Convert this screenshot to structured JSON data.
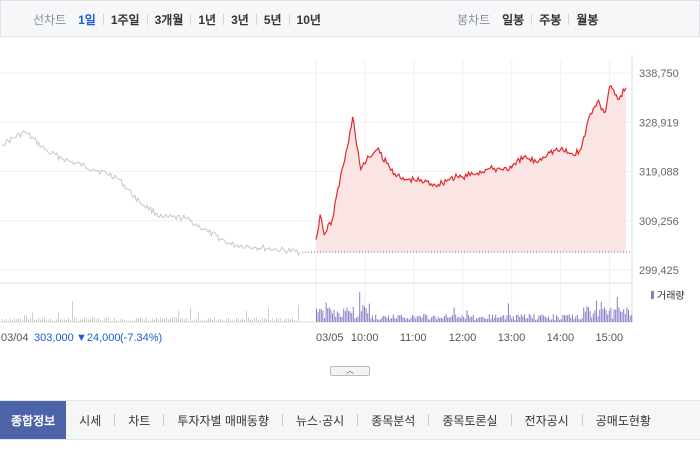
{
  "toolbar": {
    "line_chart_label": "선차트",
    "periods": [
      "1일",
      "1주일",
      "3개월",
      "1년",
      "3년",
      "5년",
      "10년"
    ],
    "active_period": "1일",
    "candle_chart_label": "봉차트",
    "candle_periods": [
      "일봉",
      "주봉",
      "월봉"
    ]
  },
  "chart_data": {
    "type": "line",
    "title": "",
    "xlabel": "",
    "ylabel": "",
    "y_ticks": [
      "338,750",
      "328,919",
      "319,088",
      "309,256",
      "299,425"
    ],
    "ylim": [
      299425,
      338750
    ],
    "x_ticks": [
      "03/05",
      "10:00",
      "11:00",
      "12:00",
      "13:00",
      "14:00",
      "15:00"
    ],
    "previous_close": 303000,
    "previous_session": {
      "name": "03/04",
      "color": "#c8c8c8",
      "x": [
        "09:00",
        "09:30",
        "10:00",
        "10:30",
        "11:00",
        "11:30",
        "12:00",
        "12:30",
        "13:00",
        "13:30",
        "14:00",
        "14:30",
        "15:00",
        "15:30"
      ],
      "values": [
        324500,
        327000,
        323000,
        321000,
        319600,
        318000,
        313000,
        309900,
        309800,
        307000,
        304500,
        304000,
        303500,
        303000
      ]
    },
    "current_session": {
      "name": "03/05",
      "color": "#e22a2a",
      "fill": "#fbe4e4",
      "x": [
        "09:00",
        "09:05",
        "09:10",
        "09:20",
        "09:30",
        "09:40",
        "09:45",
        "09:55",
        "10:05",
        "10:15",
        "10:30",
        "10:45",
        "11:00",
        "11:30",
        "11:45",
        "12:00",
        "12:30",
        "13:00",
        "13:15",
        "13:30",
        "13:45",
        "14:00",
        "14:15",
        "14:25",
        "14:35",
        "14:45",
        "14:55",
        "15:00",
        "15:10",
        "15:20"
      ],
      "values": [
        305500,
        310500,
        306500,
        309500,
        318000,
        325000,
        330000,
        319500,
        322000,
        323500,
        320000,
        317500,
        317500,
        316500,
        317800,
        318000,
        319500,
        319800,
        322000,
        321000,
        323000,
        323500,
        322500,
        323500,
        330000,
        333000,
        331000,
        336000,
        333500,
        335800
      ]
    },
    "volume_label": "거래량",
    "volume_color": "#8c7bc6",
    "volume_prev_color": "#cfcfcf",
    "grid": true
  },
  "summary": {
    "date": "03/04",
    "price": "303,000",
    "change": "▼24,000",
    "change_pct": "(-7.34%)"
  },
  "tabs": [
    "종합정보",
    "시세",
    "차트",
    "투자자별 매매동향",
    "뉴스·공시",
    "종목분석",
    "종목토론실",
    "전자공시",
    "공매도현황"
  ],
  "active_tab": "종합정보",
  "colors": {
    "accent": "#1f5bd6",
    "down": "#1f5bd6",
    "up": "#e22a2a",
    "tab_active": "#4d63a8"
  },
  "icons": {
    "collapse": "chevron-up-icon"
  }
}
